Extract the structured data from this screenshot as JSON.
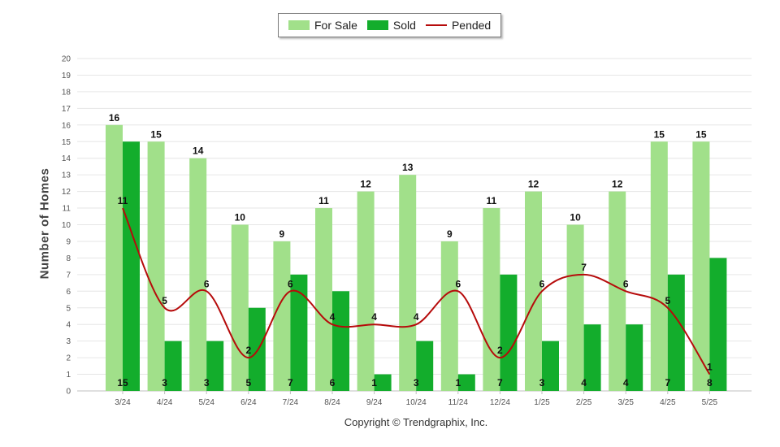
{
  "chart_data": {
    "type": "bar",
    "categories": [
      "3/24",
      "4/24",
      "5/24",
      "6/24",
      "7/24",
      "8/24",
      "9/24",
      "10/24",
      "11/24",
      "12/24",
      "1/25",
      "2/25",
      "3/25",
      "4/25",
      "5/25"
    ],
    "series": [
      {
        "name": "For Sale",
        "kind": "bar",
        "color": "#a1e08a",
        "values": [
          16,
          15,
          14,
          10,
          9,
          11,
          12,
          13,
          9,
          11,
          12,
          10,
          12,
          15,
          15
        ]
      },
      {
        "name": "Sold",
        "kind": "bar",
        "color": "#13ad2c",
        "values": [
          15,
          3,
          3,
          5,
          7,
          6,
          1,
          3,
          1,
          7,
          3,
          4,
          4,
          7,
          8
        ]
      },
      {
        "name": "Pended",
        "kind": "line",
        "color": "#b60b0b",
        "values": [
          11,
          5,
          6,
          2,
          6,
          4,
          4,
          4,
          6,
          2,
          6,
          7,
          6,
          5,
          1
        ]
      }
    ],
    "ylabel": "Number of Homes",
    "ylim": [
      0,
      20
    ],
    "yticks": [
      0,
      1,
      2,
      3,
      4,
      5,
      6,
      7,
      8,
      9,
      10,
      11,
      12,
      13,
      14,
      15,
      16,
      17,
      18,
      19,
      20
    ],
    "grid": true,
    "legend": "top-center"
  },
  "footer": {
    "copyright": "Copyright © Trendgraphix, Inc."
  }
}
